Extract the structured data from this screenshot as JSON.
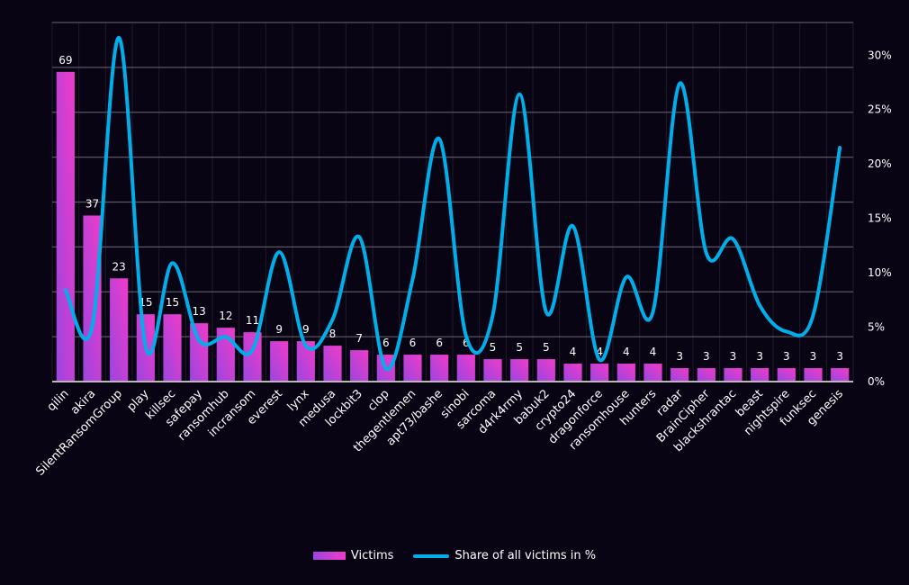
{
  "chart_data": {
    "type": "bar+line",
    "title": "",
    "categories": [
      "qilin",
      "akira",
      "SilentRansomGroup",
      "play",
      "killsec",
      "safepay",
      "ransomhub",
      "incransom",
      "everest",
      "lynx",
      "medusa",
      "lockbit3",
      "clop",
      "thegentlemen",
      "apt73/bashe",
      "sinobi",
      "sarcoma",
      "d4rk4rmy",
      "babuk2",
      "crypto24",
      "dragonforce",
      "ransomhouse",
      "hunters",
      "radar",
      "BrainCipher",
      "blackshrantac",
      "beast",
      "nightspire",
      "funksec",
      "genesis"
    ],
    "series": [
      {
        "name": "Victims",
        "type": "bar",
        "axis": "left",
        "color_start": "#9b45e0",
        "color_end": "#f03bc8",
        "values": [
          69,
          37,
          23,
          15,
          15,
          13,
          12,
          11,
          9,
          9,
          8,
          7,
          6,
          6,
          6,
          6,
          5,
          5,
          5,
          4,
          4,
          4,
          4,
          3,
          3,
          3,
          3,
          3,
          3,
          3
        ]
      },
      {
        "name": "Share of all victims in %",
        "type": "line",
        "axis": "right",
        "color": "#00aeea",
        "values": [
          8.4,
          5.1,
          31.6,
          3.2,
          10.9,
          3.8,
          4.1,
          2.9,
          11.9,
          3.3,
          5.7,
          13.3,
          1.2,
          9.4,
          22.3,
          4.2,
          6.1,
          26.4,
          6.4,
          14.3,
          2.0,
          9.6,
          6.4,
          27.4,
          11.8,
          13.1,
          7.0,
          4.6,
          6.1,
          21.5
        ]
      }
    ],
    "left_axis": {
      "range": [
        0,
        80
      ],
      "grid_step": 10,
      "labels_visible": false
    },
    "right_axis": {
      "range": [
        0,
        33
      ],
      "ticks": [
        0,
        5,
        10,
        15,
        20,
        25,
        30
      ],
      "tick_labels": [
        "0%",
        "5%",
        "10%",
        "15%",
        "20%",
        "25%",
        "30%"
      ]
    },
    "grid": true,
    "legend": {
      "placement": "bottom-center",
      "items": [
        {
          "label": "Victims",
          "kind": "bar"
        },
        {
          "label": "Share of all victims in %",
          "kind": "line"
        }
      ]
    },
    "colors": {
      "background": "#080414",
      "grid": "#5a5560",
      "grid_vertical": "#1e1a28",
      "baseline": "#b8b8b8",
      "text": "#ffffff"
    }
  }
}
